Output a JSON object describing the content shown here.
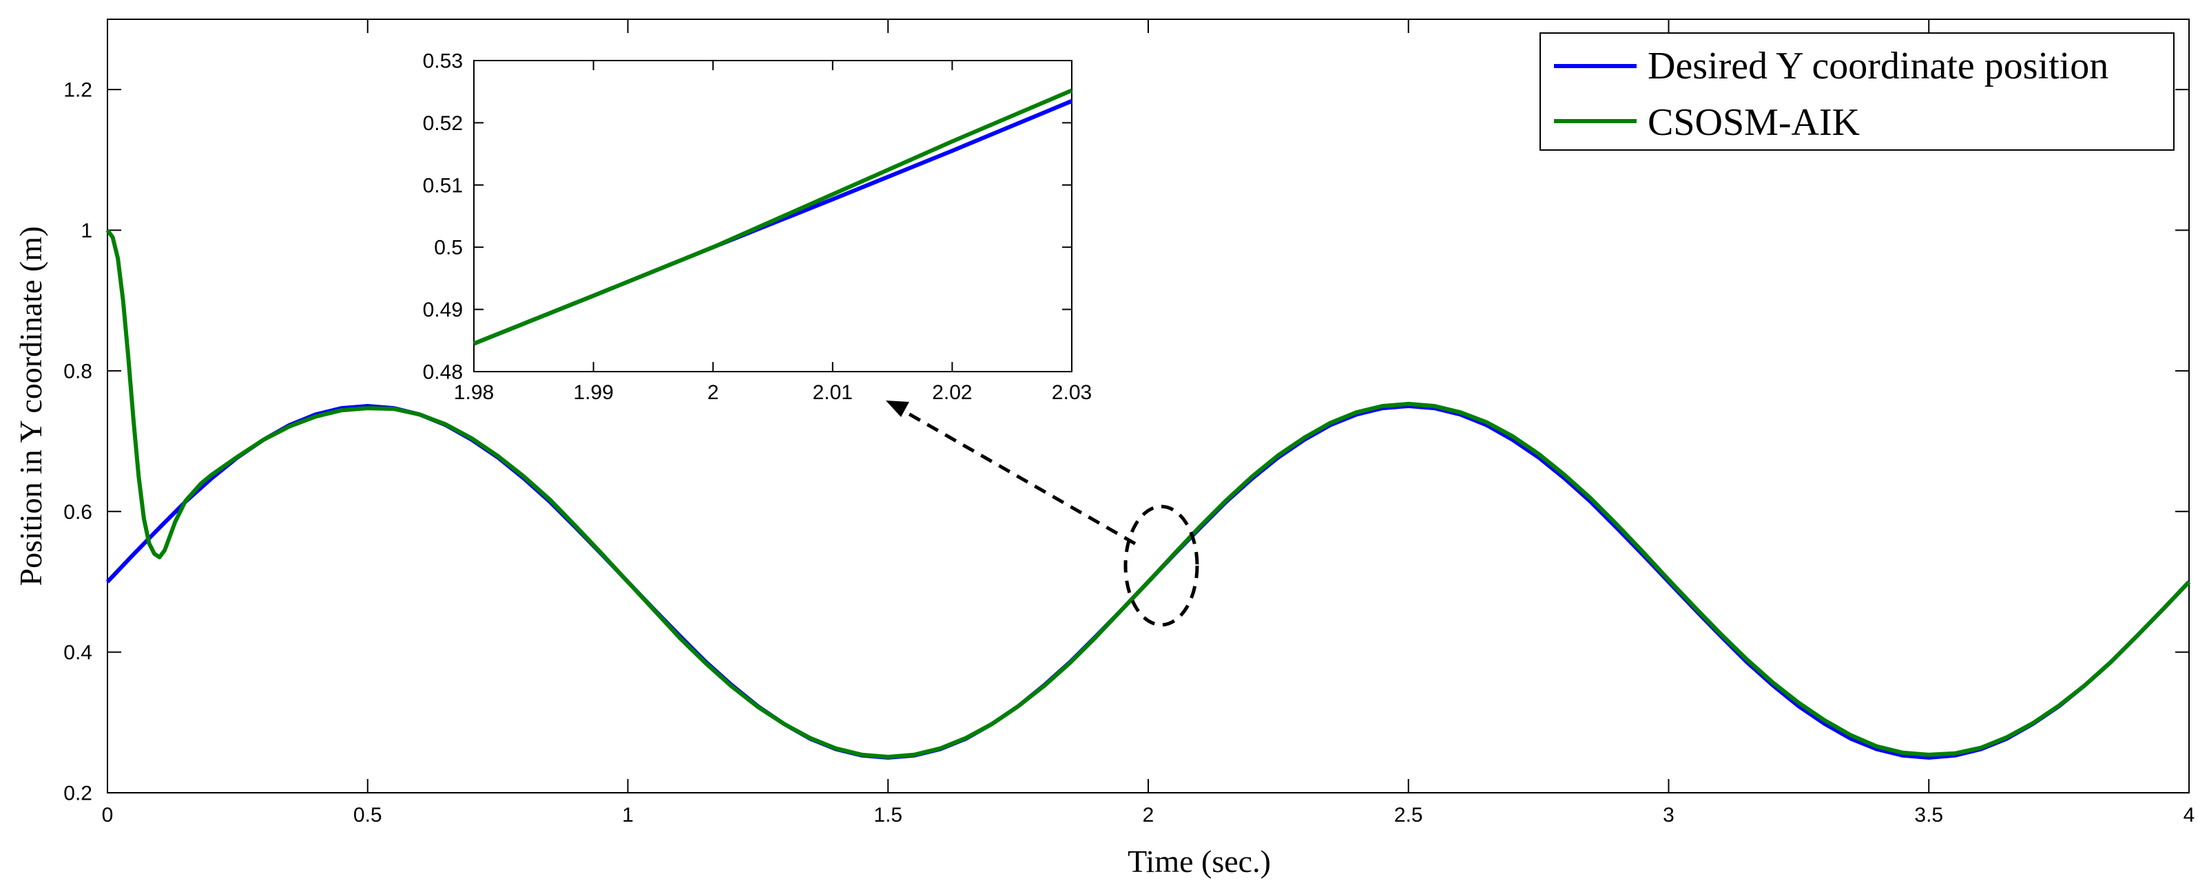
{
  "chart_data": [
    {
      "type": "line",
      "panel": "main",
      "xlabel": "Time (sec.)",
      "ylabel": "Position in Y coordinate (m)",
      "xlim": [
        0,
        4
      ],
      "ylim": [
        0.2,
        1.3
      ],
      "xticks": [
        0,
        0.5,
        1,
        1.5,
        2,
        2.5,
        3,
        3.5,
        4
      ],
      "xtick_labels": [
        "0",
        "0.5",
        "1",
        "1.5",
        "2",
        "2.5",
        "3",
        "3.5",
        "4"
      ],
      "yticks": [
        0.2,
        0.4,
        0.6,
        0.8,
        1,
        1.2
      ],
      "ytick_labels": [
        "0.2",
        "0.4",
        "0.6",
        "0.8",
        "1",
        "1.2"
      ],
      "grid": false,
      "legend_position": "top-right",
      "series": [
        {
          "name": "Desired Y coordinate position",
          "color": "#0000ff",
          "x": [
            0,
            0.05,
            0.1,
            0.15,
            0.2,
            0.25,
            0.3,
            0.35,
            0.4,
            0.45,
            0.5,
            0.55,
            0.6,
            0.65,
            0.7,
            0.75,
            0.8,
            0.85,
            0.9,
            0.95,
            1,
            1.05,
            1.1,
            1.15,
            1.2,
            1.25,
            1.3,
            1.35,
            1.4,
            1.45,
            1.5,
            1.55,
            1.6,
            1.65,
            1.7,
            1.75,
            1.8,
            1.85,
            1.9,
            1.95,
            2,
            2.05,
            2.1,
            2.15,
            2.2,
            2.25,
            2.3,
            2.35,
            2.4,
            2.45,
            2.5,
            2.55,
            2.6,
            2.65,
            2.7,
            2.75,
            2.8,
            2.85,
            2.9,
            2.95,
            3,
            3.05,
            3.1,
            3.15,
            3.2,
            3.25,
            3.3,
            3.35,
            3.4,
            3.45,
            3.5,
            3.55,
            3.6,
            3.65,
            3.7,
            3.75,
            3.8,
            3.85,
            3.9,
            3.95,
            4
          ],
          "y": [
            0.5,
            0.539,
            0.577,
            0.614,
            0.647,
            0.677,
            0.702,
            0.723,
            0.738,
            0.747,
            0.75,
            0.747,
            0.738,
            0.723,
            0.702,
            0.677,
            0.647,
            0.614,
            0.577,
            0.539,
            0.5,
            0.461,
            0.423,
            0.386,
            0.353,
            0.323,
            0.298,
            0.277,
            0.262,
            0.253,
            0.25,
            0.253,
            0.262,
            0.277,
            0.298,
            0.323,
            0.353,
            0.386,
            0.423,
            0.461,
            0.5,
            0.539,
            0.577,
            0.614,
            0.647,
            0.677,
            0.702,
            0.723,
            0.738,
            0.747,
            0.75,
            0.747,
            0.738,
            0.723,
            0.702,
            0.677,
            0.647,
            0.614,
            0.577,
            0.539,
            0.5,
            0.461,
            0.423,
            0.386,
            0.353,
            0.323,
            0.298,
            0.277,
            0.262,
            0.253,
            0.25,
            0.253,
            0.262,
            0.277,
            0.298,
            0.323,
            0.353,
            0.386,
            0.423,
            0.461,
            0.5
          ]
        },
        {
          "name": "CSOSM-AIK",
          "color": "#008000",
          "x": [
            0,
            0.01,
            0.02,
            0.03,
            0.04,
            0.05,
            0.06,
            0.07,
            0.08,
            0.09,
            0.1,
            0.11,
            0.12,
            0.13,
            0.15,
            0.18,
            0.2,
            0.25,
            0.3,
            0.35,
            0.4,
            0.45,
            0.5,
            0.55,
            0.6,
            0.65,
            0.7,
            0.75,
            0.8,
            0.85,
            0.9,
            0.95,
            1,
            1.05,
            1.1,
            1.15,
            1.2,
            1.25,
            1.3,
            1.35,
            1.4,
            1.45,
            1.5,
            1.55,
            1.6,
            1.65,
            1.7,
            1.75,
            1.8,
            1.85,
            1.9,
            1.95,
            2,
            2.05,
            2.1,
            2.15,
            2.2,
            2.25,
            2.3,
            2.35,
            2.4,
            2.45,
            2.5,
            2.55,
            2.6,
            2.65,
            2.7,
            2.75,
            2.8,
            2.85,
            2.9,
            2.95,
            3,
            3.05,
            3.1,
            3.15,
            3.2,
            3.25,
            3.3,
            3.35,
            3.4,
            3.45,
            3.5,
            3.55,
            3.6,
            3.65,
            3.7,
            3.75,
            3.8,
            3.85,
            3.9,
            3.95,
            4
          ],
          "y": [
            1.0,
            0.99,
            0.96,
            0.9,
            0.82,
            0.73,
            0.65,
            0.59,
            0.555,
            0.54,
            0.535,
            0.545,
            0.565,
            0.585,
            0.615,
            0.64,
            0.652,
            0.678,
            0.702,
            0.721,
            0.735,
            0.744,
            0.747,
            0.746,
            0.738,
            0.724,
            0.704,
            0.679,
            0.65,
            0.617,
            0.579,
            0.54,
            0.5,
            0.46,
            0.42,
            0.384,
            0.351,
            0.322,
            0.298,
            0.278,
            0.263,
            0.254,
            0.251,
            0.254,
            0.263,
            0.278,
            0.298,
            0.323,
            0.352,
            0.385,
            0.422,
            0.461,
            0.5,
            0.54,
            0.579,
            0.616,
            0.65,
            0.68,
            0.705,
            0.726,
            0.741,
            0.75,
            0.753,
            0.75,
            0.741,
            0.727,
            0.707,
            0.682,
            0.652,
            0.619,
            0.582,
            0.543,
            0.503,
            0.464,
            0.426,
            0.39,
            0.357,
            0.328,
            0.303,
            0.282,
            0.266,
            0.257,
            0.254,
            0.256,
            0.264,
            0.279,
            0.299,
            0.324,
            0.353,
            0.386,
            0.423,
            0.461,
            0.5
          ]
        }
      ],
      "annotation": {
        "type": "ellipse-with-arrow",
        "center": [
          2.02,
          0.52
        ],
        "points_to": "inset"
      }
    },
    {
      "type": "line",
      "panel": "inset",
      "xlim": [
        1.98,
        2.03
      ],
      "ylim": [
        0.48,
        0.53
      ],
      "xticks": [
        1.98,
        1.99,
        2,
        2.01,
        2.02,
        2.03
      ],
      "xtick_labels": [
        "1.98",
        "1.99",
        "2",
        "2.01",
        "2.02",
        "2.03"
      ],
      "yticks": [
        0.48,
        0.49,
        0.5,
        0.51,
        0.52,
        0.53
      ],
      "ytick_labels": [
        "0.48",
        "0.49",
        "0.5",
        "0.51",
        "0.52",
        "0.53"
      ],
      "series": [
        {
          "color": "#0000ff",
          "x": [
            1.98,
            1.99,
            2,
            2.01,
            2.02,
            2.03
          ],
          "y": [
            0.4845,
            0.4922,
            0.5,
            0.5077,
            0.5155,
            0.5235
          ]
        },
        {
          "color": "#008000",
          "x": [
            1.98,
            1.99,
            2,
            2.01,
            2.02,
            2.03
          ],
          "y": [
            0.4845,
            0.4922,
            0.5,
            0.5085,
            0.517,
            0.5252
          ]
        }
      ]
    }
  ]
}
